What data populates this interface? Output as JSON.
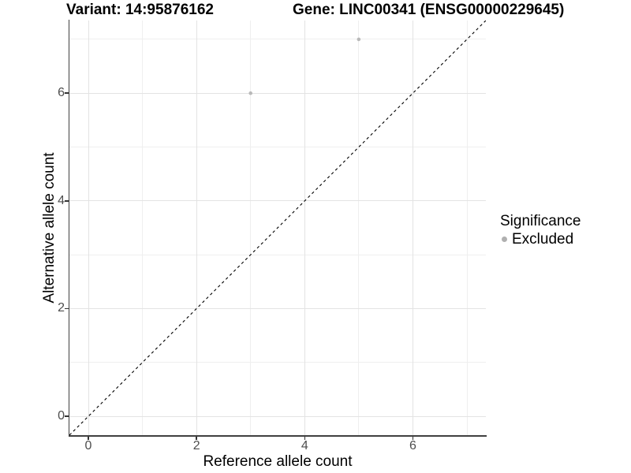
{
  "header": {
    "variant_title": "Variant: 14:95876162",
    "gene_title": "Gene: LINC00341 (ENSG00000229645)"
  },
  "chart_data": {
    "type": "scatter",
    "title": "Variant: 14:95876162   Gene: LINC00341 (ENSG00000229645)",
    "xlabel": "Reference allele count",
    "ylabel": "Alternative allele count",
    "xlim": [
      -0.35,
      7.35
    ],
    "ylim": [
      -0.35,
      7.35
    ],
    "x_ticks": [
      0,
      2,
      4,
      6
    ],
    "y_ticks": [
      0,
      2,
      4,
      6
    ],
    "x_minor_gridlines": [
      1,
      3,
      5,
      7
    ],
    "y_minor_gridlines": [
      1,
      3,
      5,
      7
    ],
    "grid": "on",
    "series": [
      {
        "name": "Excluded",
        "color": "#b9b9b9",
        "points": [
          {
            "x": 3,
            "y": 6
          },
          {
            "x": 5,
            "y": 7
          }
        ]
      }
    ],
    "identity_line": {
      "slope": 1,
      "intercept": 0,
      "style": "dashed",
      "color": "#000000"
    },
    "legend": {
      "title": "Significance",
      "position": "right",
      "items": [
        {
          "label": "Excluded",
          "color": "#b0b0b0"
        }
      ]
    }
  },
  "colors": {
    "grid_major": "#e3e3e3",
    "grid_minor": "#efefef",
    "axis_line": "#404040",
    "tick_label": "#4d4d4d",
    "point": "#b9b9b9"
  }
}
